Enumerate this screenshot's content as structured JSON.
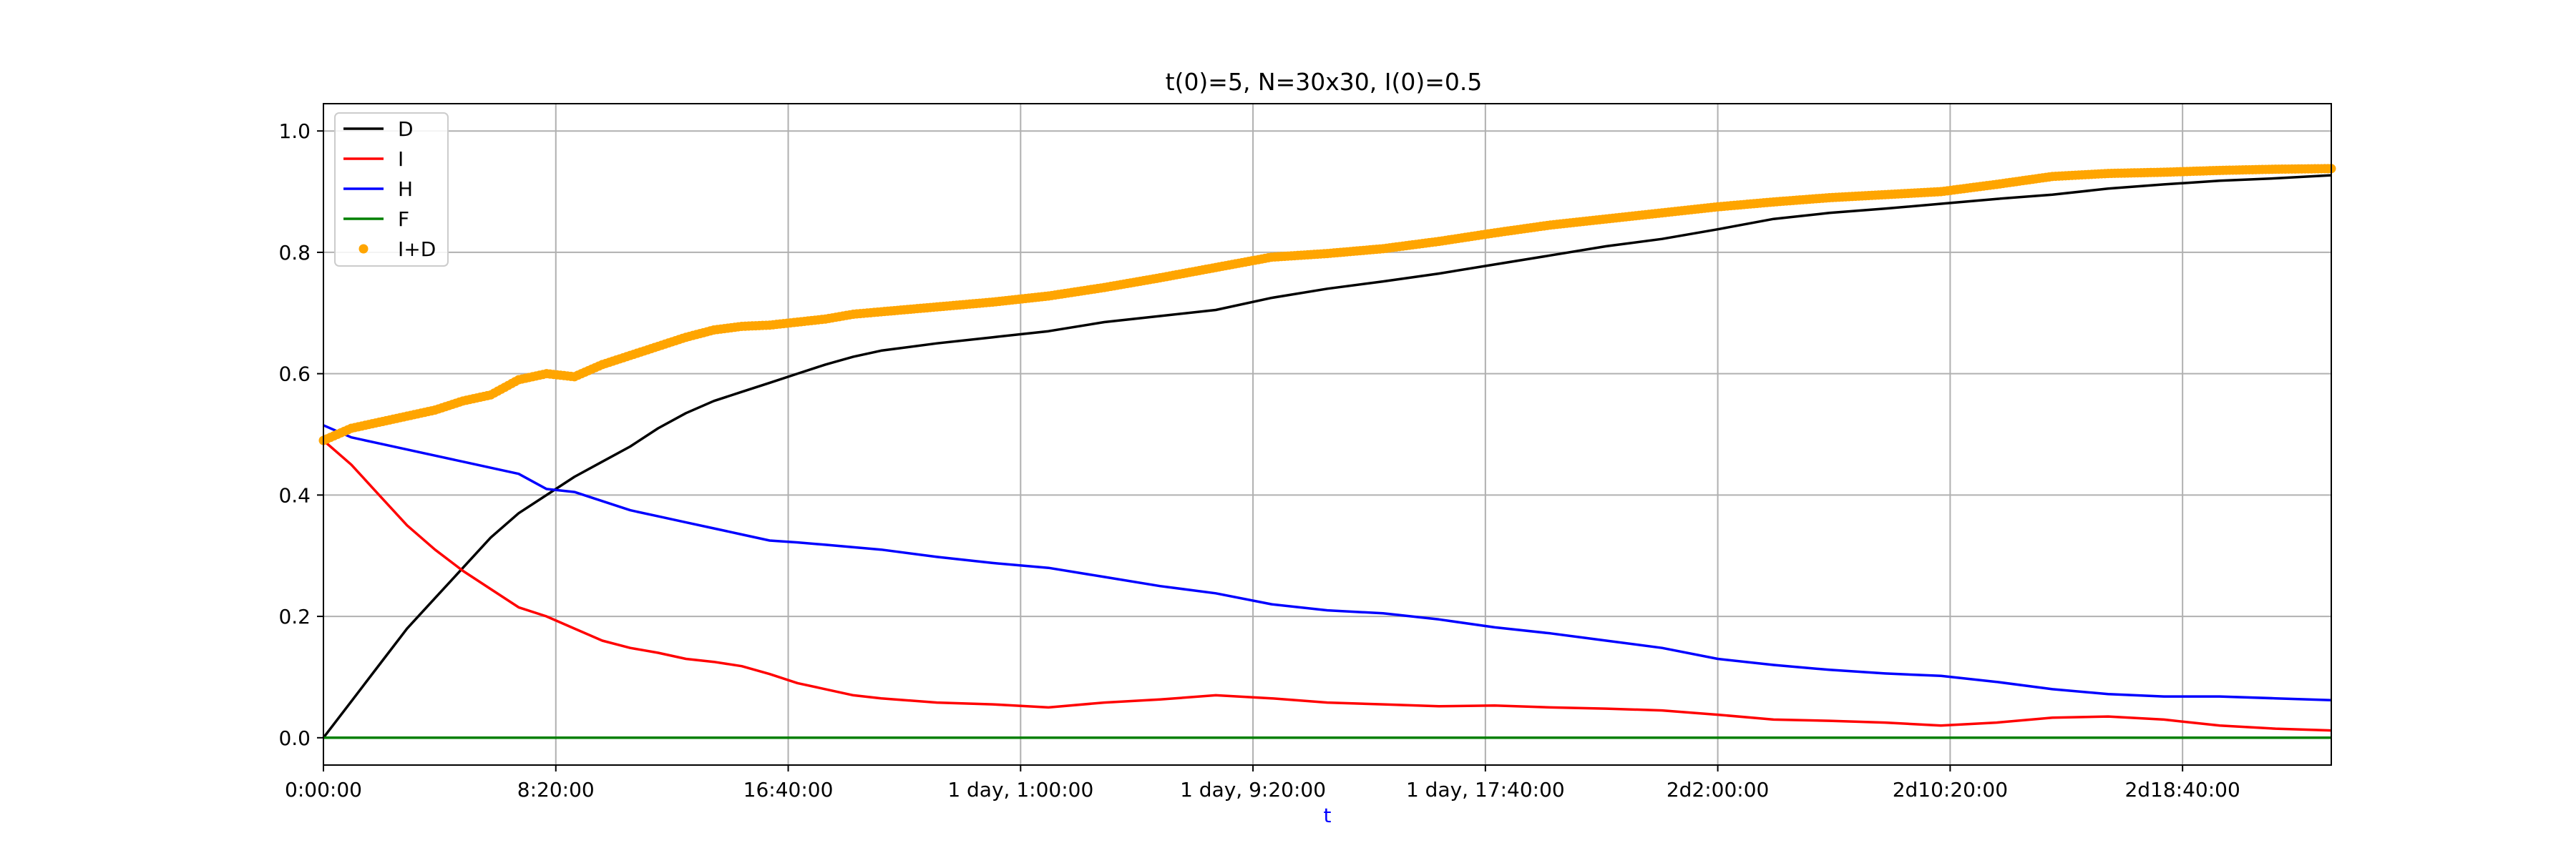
{
  "chart_data": {
    "type": "line",
    "title": "t(0)=5, N=30x30, I(0)=0.5",
    "xlabel": "t",
    "ylabel": "",
    "x_unit": "hours",
    "xlim": [
      0,
      72
    ],
    "ylim": [
      -0.045,
      1.045
    ],
    "grid": true,
    "legend_position": "top-left",
    "x_ticks": [
      {
        "value": 0,
        "label": "0:00:00"
      },
      {
        "value": 8.3333,
        "label": "8:20:00"
      },
      {
        "value": 16.6667,
        "label": "16:40:00"
      },
      {
        "value": 25,
        "label": "1 day, 1:00:00"
      },
      {
        "value": 33.3333,
        "label": "1 day, 9:20:00"
      },
      {
        "value": 41.6667,
        "label": "1 day, 17:40:00"
      },
      {
        "value": 50,
        "label": "2d2:00:00"
      },
      {
        "value": 58.3333,
        "label": "2d10:20:00"
      },
      {
        "value": 66.6667,
        "label": "2d18:40:00"
      }
    ],
    "y_ticks": [
      {
        "value": 0.0,
        "label": "0.0"
      },
      {
        "value": 0.2,
        "label": "0.2"
      },
      {
        "value": 0.4,
        "label": "0.4"
      },
      {
        "value": 0.6,
        "label": "0.6"
      },
      {
        "value": 0.8,
        "label": "0.8"
      },
      {
        "value": 1.0,
        "label": "1.0"
      }
    ],
    "series": [
      {
        "name": "D",
        "color": "#000000",
        "style": "line",
        "points": [
          [
            0,
            0
          ],
          [
            1,
            0.06
          ],
          [
            2,
            0.12
          ],
          [
            3,
            0.18
          ],
          [
            4,
            0.23
          ],
          [
            5,
            0.28
          ],
          [
            6,
            0.33
          ],
          [
            7,
            0.37
          ],
          [
            8,
            0.4
          ],
          [
            9,
            0.43
          ],
          [
            10,
            0.455
          ],
          [
            11,
            0.48
          ],
          [
            12,
            0.51
          ],
          [
            13,
            0.535
          ],
          [
            14,
            0.555
          ],
          [
            15,
            0.57
          ],
          [
            16,
            0.585
          ],
          [
            17,
            0.6
          ],
          [
            18,
            0.615
          ],
          [
            19,
            0.628
          ],
          [
            20,
            0.638
          ],
          [
            22,
            0.65
          ],
          [
            24,
            0.66
          ],
          [
            26,
            0.67
          ],
          [
            28,
            0.685
          ],
          [
            30,
            0.695
          ],
          [
            32,
            0.705
          ],
          [
            34,
            0.725
          ],
          [
            36,
            0.74
          ],
          [
            38,
            0.752
          ],
          [
            40,
            0.765
          ],
          [
            42,
            0.78
          ],
          [
            44,
            0.795
          ],
          [
            46,
            0.81
          ],
          [
            48,
            0.822
          ],
          [
            50,
            0.838
          ],
          [
            52,
            0.855
          ],
          [
            54,
            0.865
          ],
          [
            56,
            0.872
          ],
          [
            58,
            0.88
          ],
          [
            60,
            0.888
          ],
          [
            62,
            0.895
          ],
          [
            64,
            0.905
          ],
          [
            66,
            0.912
          ],
          [
            68,
            0.918
          ],
          [
            70,
            0.922
          ],
          [
            72,
            0.927
          ]
        ]
      },
      {
        "name": "I",
        "color": "#ff0000",
        "style": "line",
        "points": [
          [
            0,
            0.49
          ],
          [
            1,
            0.45
          ],
          [
            2,
            0.4
          ],
          [
            3,
            0.35
          ],
          [
            4,
            0.31
          ],
          [
            5,
            0.275
          ],
          [
            6,
            0.245
          ],
          [
            7,
            0.215
          ],
          [
            8,
            0.2
          ],
          [
            9,
            0.18
          ],
          [
            10,
            0.16
          ],
          [
            11,
            0.148
          ],
          [
            12,
            0.14
          ],
          [
            13,
            0.13
          ],
          [
            14,
            0.125
          ],
          [
            15,
            0.118
          ],
          [
            16,
            0.105
          ],
          [
            17,
            0.09
          ],
          [
            18,
            0.08
          ],
          [
            19,
            0.07
          ],
          [
            20,
            0.065
          ],
          [
            22,
            0.058
          ],
          [
            24,
            0.055
          ],
          [
            26,
            0.05
          ],
          [
            28,
            0.058
          ],
          [
            30,
            0.063
          ],
          [
            32,
            0.07
          ],
          [
            34,
            0.065
          ],
          [
            36,
            0.058
          ],
          [
            38,
            0.055
          ],
          [
            40,
            0.052
          ],
          [
            42,
            0.053
          ],
          [
            44,
            0.05
          ],
          [
            46,
            0.048
          ],
          [
            48,
            0.045
          ],
          [
            50,
            0.038
          ],
          [
            52,
            0.03
          ],
          [
            54,
            0.028
          ],
          [
            56,
            0.025
          ],
          [
            58,
            0.02
          ],
          [
            60,
            0.025
          ],
          [
            62,
            0.033
          ],
          [
            64,
            0.035
          ],
          [
            66,
            0.03
          ],
          [
            68,
            0.02
          ],
          [
            70,
            0.015
          ],
          [
            72,
            0.012
          ]
        ]
      },
      {
        "name": "H",
        "color": "#0000ff",
        "style": "line",
        "points": [
          [
            0,
            0.515
          ],
          [
            1,
            0.495
          ],
          [
            2,
            0.485
          ],
          [
            3,
            0.475
          ],
          [
            4,
            0.465
          ],
          [
            5,
            0.455
          ],
          [
            6,
            0.445
          ],
          [
            7,
            0.435
          ],
          [
            8,
            0.41
          ],
          [
            9,
            0.405
          ],
          [
            10,
            0.39
          ],
          [
            11,
            0.375
          ],
          [
            12,
            0.365
          ],
          [
            13,
            0.355
          ],
          [
            14,
            0.345
          ],
          [
            15,
            0.335
          ],
          [
            16,
            0.325
          ],
          [
            17,
            0.322
          ],
          [
            18,
            0.318
          ],
          [
            20,
            0.31
          ],
          [
            22,
            0.298
          ],
          [
            24,
            0.288
          ],
          [
            26,
            0.28
          ],
          [
            28,
            0.265
          ],
          [
            30,
            0.25
          ],
          [
            32,
            0.238
          ],
          [
            34,
            0.22
          ],
          [
            36,
            0.21
          ],
          [
            38,
            0.205
          ],
          [
            40,
            0.195
          ],
          [
            42,
            0.182
          ],
          [
            44,
            0.172
          ],
          [
            46,
            0.16
          ],
          [
            48,
            0.148
          ],
          [
            50,
            0.13
          ],
          [
            52,
            0.12
          ],
          [
            54,
            0.112
          ],
          [
            56,
            0.106
          ],
          [
            58,
            0.102
          ],
          [
            60,
            0.092
          ],
          [
            62,
            0.08
          ],
          [
            64,
            0.072
          ],
          [
            66,
            0.068
          ],
          [
            68,
            0.068
          ],
          [
            70,
            0.065
          ],
          [
            72,
            0.062
          ]
        ]
      },
      {
        "name": "F",
        "color": "#008000",
        "style": "line",
        "points": [
          [
            0,
            0
          ],
          [
            72,
            0
          ]
        ]
      },
      {
        "name": "I+D",
        "color": "#ffa500",
        "style": "markers",
        "points": [
          [
            0,
            0.49
          ],
          [
            1,
            0.51
          ],
          [
            2,
            0.52
          ],
          [
            3,
            0.53
          ],
          [
            4,
            0.54
          ],
          [
            5,
            0.555
          ],
          [
            6,
            0.565
          ],
          [
            7,
            0.59
          ],
          [
            8,
            0.6
          ],
          [
            9,
            0.595
          ],
          [
            10,
            0.615
          ],
          [
            11,
            0.63
          ],
          [
            12,
            0.645
          ],
          [
            13,
            0.66
          ],
          [
            14,
            0.672
          ],
          [
            15,
            0.678
          ],
          [
            16,
            0.68
          ],
          [
            17,
            0.685
          ],
          [
            18,
            0.69
          ],
          [
            19,
            0.698
          ],
          [
            20,
            0.702
          ],
          [
            22,
            0.71
          ],
          [
            24,
            0.718
          ],
          [
            26,
            0.728
          ],
          [
            28,
            0.742
          ],
          [
            30,
            0.758
          ],
          [
            32,
            0.775
          ],
          [
            34,
            0.792
          ],
          [
            36,
            0.798
          ],
          [
            38,
            0.806
          ],
          [
            40,
            0.818
          ],
          [
            42,
            0.832
          ],
          [
            44,
            0.845
          ],
          [
            46,
            0.855
          ],
          [
            48,
            0.865
          ],
          [
            50,
            0.875
          ],
          [
            52,
            0.883
          ],
          [
            54,
            0.89
          ],
          [
            56,
            0.895
          ],
          [
            58,
            0.9
          ],
          [
            60,
            0.912
          ],
          [
            62,
            0.925
          ],
          [
            64,
            0.93
          ],
          [
            66,
            0.932
          ],
          [
            68,
            0.935
          ],
          [
            70,
            0.937
          ],
          [
            72,
            0.938
          ]
        ]
      }
    ]
  }
}
